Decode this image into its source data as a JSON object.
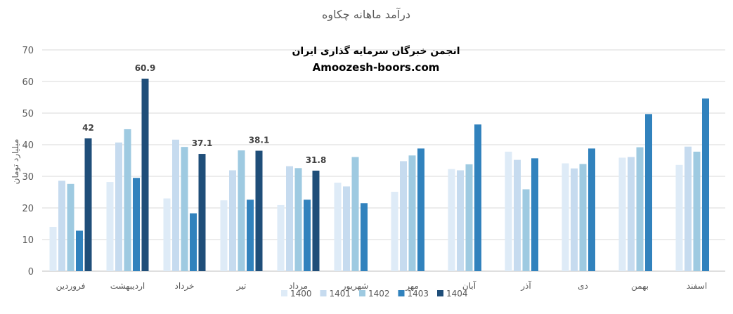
{
  "chart_data": {
    "type": "bar",
    "title": "درآمد ماهانه چکاوه",
    "watermark": {
      "line1": "انجمن خبرگان سرمایه گذاری ایران",
      "line2": "Amoozesh-boors.com"
    },
    "xlabel": "",
    "ylabel": "میلیارد تومان",
    "ylim": [
      0,
      70
    ],
    "yticks": [
      0,
      10,
      20,
      30,
      40,
      50,
      60,
      70
    ],
    "grid": true,
    "legend_position": "bottom",
    "categories": [
      "فروردین",
      "اردیبهشت",
      "خرداد",
      "تیر",
      "مرداد",
      "شهریور",
      "مهر",
      "آبان",
      "آذر",
      "دی",
      "بهمن",
      "اسفند"
    ],
    "series": [
      {
        "name": "1400",
        "color": "#deebf7",
        "values": [
          14.0,
          28.2,
          23.0,
          22.4,
          20.9,
          28.0,
          25.1,
          32.3,
          37.8,
          34.1,
          35.9,
          33.6
        ]
      },
      {
        "name": "1401",
        "color": "#c6dbef",
        "values": [
          28.6,
          40.7,
          41.6,
          31.9,
          33.2,
          26.8,
          34.8,
          31.9,
          35.2,
          32.5,
          36.1,
          39.4
        ]
      },
      {
        "name": "1402",
        "color": "#9ecae1",
        "values": [
          27.6,
          44.9,
          39.3,
          38.2,
          32.6,
          36.1,
          36.6,
          33.8,
          25.9,
          33.9,
          39.2,
          37.8
        ]
      },
      {
        "name": "1403",
        "color": "#3182bd",
        "values": [
          12.8,
          29.5,
          18.3,
          22.6,
          22.6,
          21.5,
          38.8,
          46.4,
          35.7,
          38.8,
          49.7,
          54.6
        ]
      },
      {
        "name": "1404",
        "color": "#1f4e79",
        "values": [
          42.0,
          60.9,
          37.1,
          38.1,
          31.8,
          null,
          null,
          null,
          null,
          null,
          null,
          null
        ]
      }
    ],
    "data_labels": {
      "series": "1404",
      "values": [
        "42",
        "60.9",
        "37.1",
        "38.1",
        "31.8",
        null,
        null,
        null,
        null,
        null,
        null,
        null
      ]
    }
  }
}
